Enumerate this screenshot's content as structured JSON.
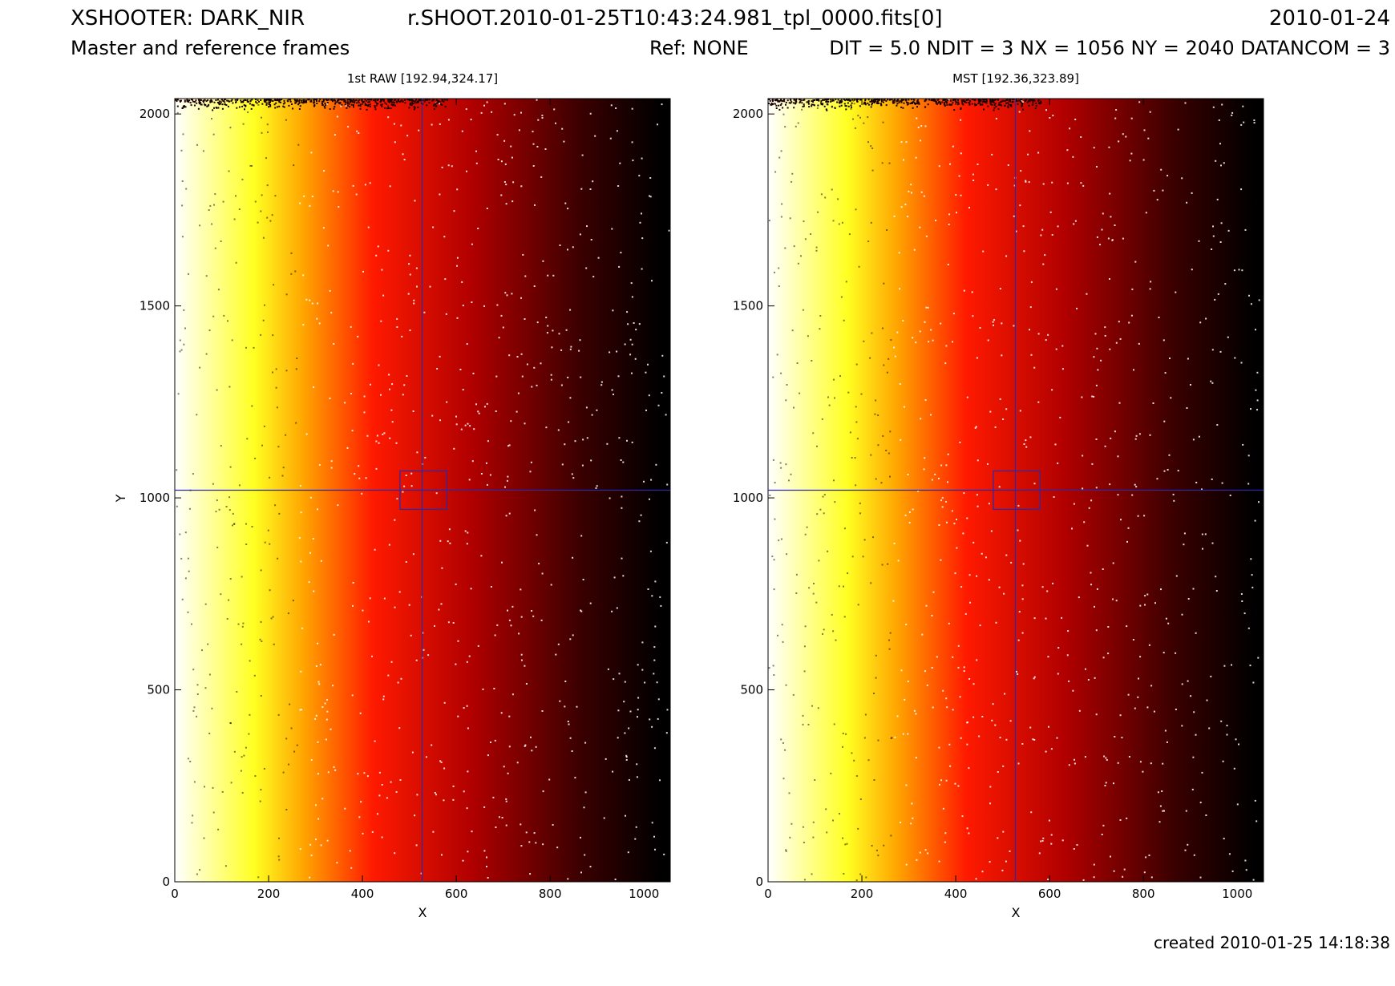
{
  "header": {
    "instrument": "XSHOOTER: DARK_NIR",
    "filename": "r.SHOOT.2010-01-25T10:43:24.981_tpl_0000.fits[0]",
    "date": "2010-01-24",
    "subtitle": "Master and reference frames",
    "ref": "Ref: NONE",
    "params": "DIT = 5.0 NDIT = 3 NX = 1056 NY = 2040 DATANCOM = 3"
  },
  "footer": {
    "created": "created 2010-01-25 14:18:38"
  },
  "colors": {
    "cursor": "#2a2aa8",
    "colormap": [
      "#ffffff",
      "#ffff22",
      "#ffa500",
      "#ff1a00",
      "#b00000",
      "#3a0000",
      "#000000"
    ]
  },
  "chart_data": [
    {
      "type": "heatmap",
      "title": "1st RAW [192.94,324.17]",
      "xlabel": "X",
      "ylabel": "Y",
      "xlim": [
        0,
        1056
      ],
      "ylim": [
        0,
        2040
      ],
      "xticks": [
        0,
        200,
        400,
        600,
        800,
        1000
      ],
      "yticks": [
        0,
        500,
        1000,
        1500,
        2000
      ],
      "cursor": {
        "x": 527,
        "y": 1020
      },
      "box": {
        "x": [
          480,
          580
        ],
        "y": [
          970,
          1070
        ]
      },
      "colormap": "heat",
      "gradient": "white at low X, through yellow, orange, red to black at high X"
    },
    {
      "type": "heatmap",
      "title": "MST [192.36,323.89]",
      "xlabel": "X",
      "ylabel": "",
      "xlim": [
        0,
        1056
      ],
      "ylim": [
        0,
        2040
      ],
      "xticks": [
        0,
        200,
        400,
        600,
        800,
        1000
      ],
      "yticks": [
        0,
        500,
        1000,
        1500,
        2000
      ],
      "cursor": {
        "x": 527,
        "y": 1020
      },
      "box": {
        "x": [
          480,
          580
        ],
        "y": [
          970,
          1070
        ]
      },
      "colormap": "heat",
      "gradient": "white at low X, through yellow, orange, red to black at high X"
    }
  ]
}
